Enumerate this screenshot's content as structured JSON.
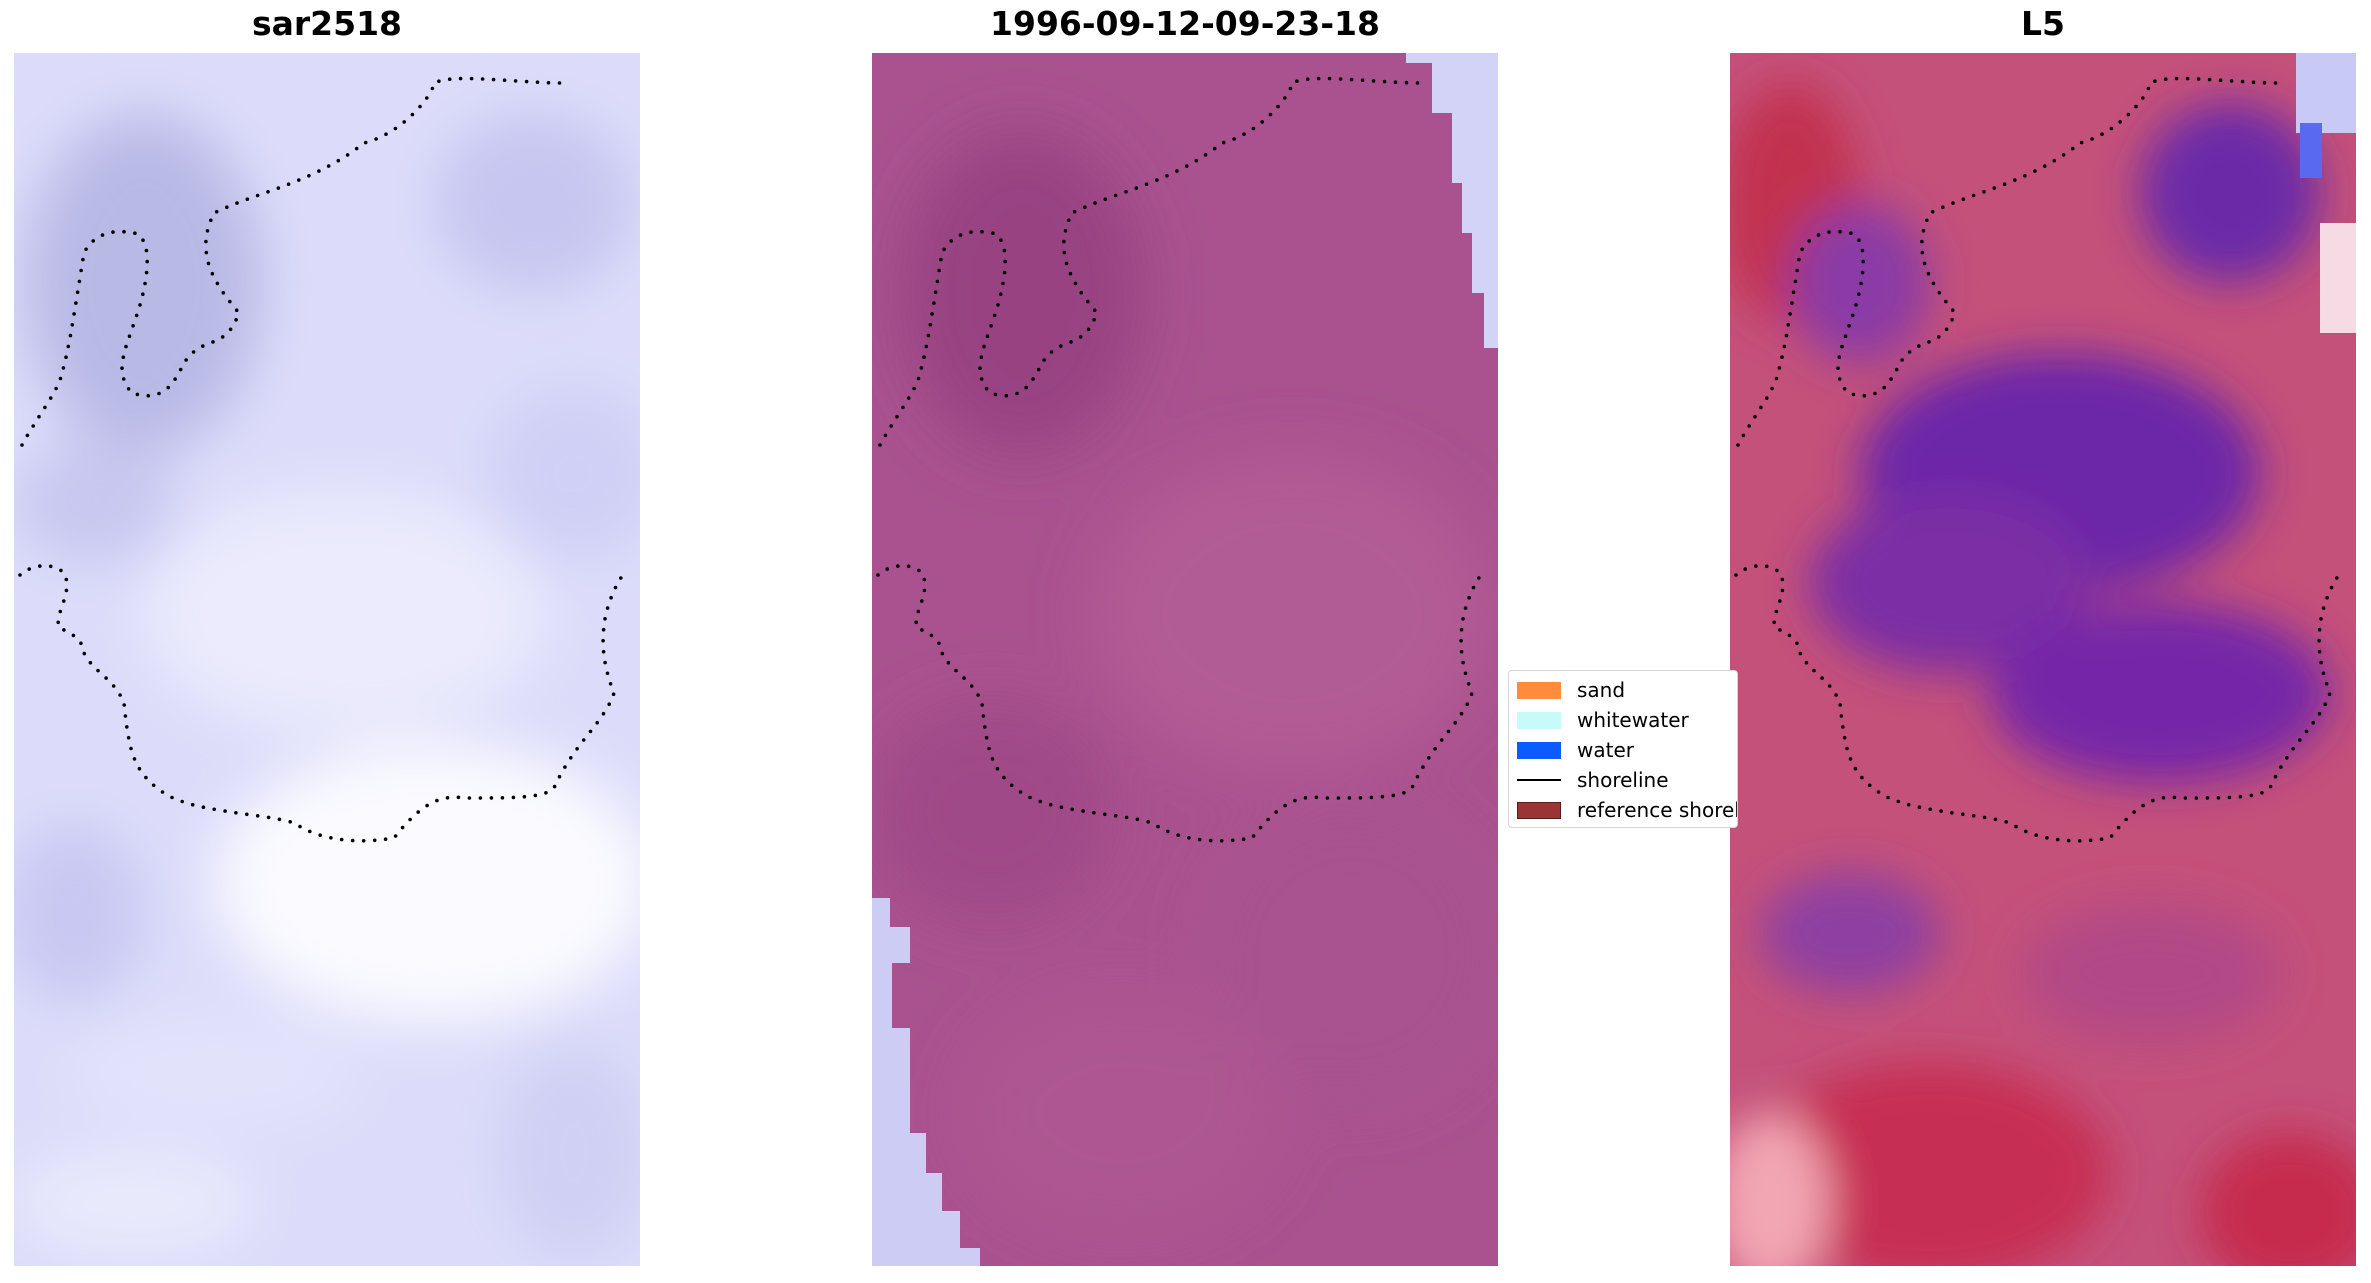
{
  "panels": [
    {
      "title": "sar2518"
    },
    {
      "title": "1996-09-12-09-23-18"
    },
    {
      "title": "L5"
    }
  ],
  "legend": {
    "items": [
      {
        "label": "sand",
        "kind": "patch",
        "color": "#ff8c3b",
        "border": "#ff8c3b"
      },
      {
        "label": "whitewater",
        "kind": "patch",
        "color": "#c8fafa",
        "border": "#c8fafa"
      },
      {
        "label": "water",
        "kind": "patch",
        "color": "#0a5cff",
        "border": "#0a5cff"
      },
      {
        "label": "shoreline",
        "kind": "line",
        "color": "#000000"
      },
      {
        "label": "reference shoreline",
        "kind": "patch",
        "color": "#9b3535",
        "border": "#5a1a1a"
      }
    ]
  },
  "colors": {
    "sar_base": "#d6d6f8",
    "rgb_base": "#a8508e",
    "l5_base": "#c2446e",
    "l5_dark": "#7a2aa8",
    "shoreline_dots": "#000000"
  }
}
